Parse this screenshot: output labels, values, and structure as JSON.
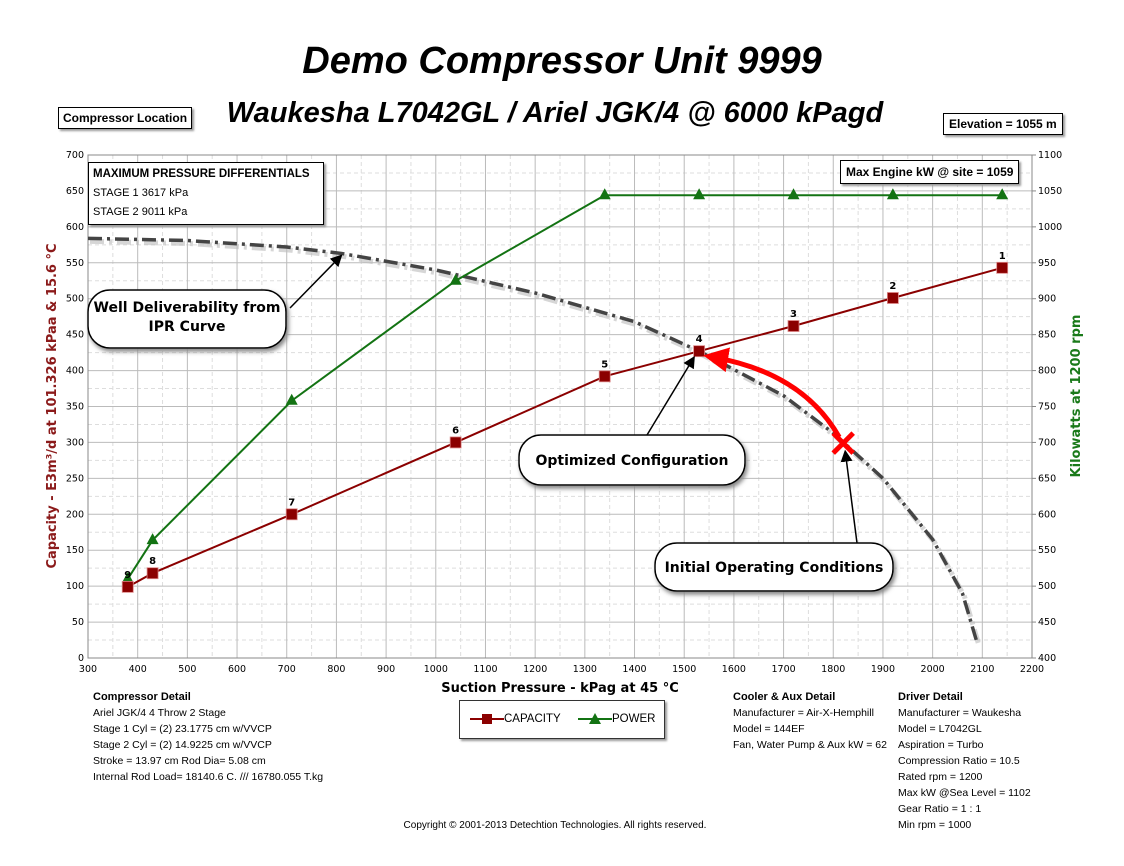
{
  "header": {
    "title": "Demo  Compressor Unit  9999",
    "subtitle": "Waukesha L7042GL / Ariel JGK/4 @ 6000 kPagd",
    "location_label": "Compressor Location",
    "elevation_label": "Elevation = 1055 m"
  },
  "pressure_box": {
    "title": "MAXIMUM PRESSURE DIFFERENTIALS",
    "stage1": "STAGE 1   3617 kPa",
    "stage2": "STAGE 2   9011 kPa"
  },
  "engine_box": "Max Engine kW @ site = 1059",
  "annotations": {
    "ipr": "Well Deliverability from IPR Curve",
    "optimized": "Optimized Configuration",
    "initial": "Initial Operating Conditions"
  },
  "compressor_detail": {
    "heading": "Compressor Detail",
    "lines": [
      "Ariel JGK/4   4 Throw  2 Stage",
      "Stage 1 Cyl = (2) 23.1775 cm w/VVCP",
      "Stage 2 Cyl = (2) 14.9225 cm w/VVCP",
      "Stroke = 13.97 cm Rod Dia= 5.08 cm",
      "Internal Rod Load= 18140.6 C. /// 16780.055 T.kg"
    ]
  },
  "cooler_detail": {
    "heading": "Cooler & Aux Detail",
    "lines": [
      "Manufacturer = Air-X-Hemphill",
      "Model = 144EF",
      "Fan, Water Pump & Aux kW = 62"
    ]
  },
  "driver_detail": {
    "heading": "Driver Detail",
    "lines": [
      "Manufacturer = Waukesha",
      "Model = L7042GL",
      "Aspiration = Turbo",
      "Compression Ratio = 10.5",
      "Rated rpm = 1200",
      "Max kW @Sea Level = 1102",
      "Gear Ratio = 1 : 1",
      "Min rpm = 1000"
    ]
  },
  "copyright": "Copyright © 2001-2013 Detechtion Technologies. All rights reserved.",
  "colors": {
    "capacity": "#8b0000",
    "power": "#137313",
    "ipr": "#444444",
    "highlight": "#ff0000",
    "left_axis": "#8b1a1a",
    "right_axis": "#1a7a1a"
  },
  "chart_data": {
    "type": "line",
    "xlabel": "Suction Pressure - kPag at 45 °C",
    "ylabel": "Capacity - E3m³/d at 101.326 kPaa & 15.6 °C",
    "y2label": "Kilowatts at 1200 rpm",
    "xlim": [
      300,
      2200
    ],
    "ylim": [
      0,
      700
    ],
    "y2lim": [
      400,
      1100
    ],
    "xticks": [
      "300",
      "400",
      "500",
      "600",
      "700",
      "800",
      "900",
      "1000",
      "1100",
      "1200",
      "1300",
      "1400",
      "1500",
      "1600",
      "1700",
      "1800",
      "1900",
      "2000",
      "2100",
      "2200"
    ],
    "yticks": [
      "0",
      "50",
      "100",
      "150",
      "200",
      "250",
      "300",
      "350",
      "400",
      "450",
      "500",
      "550",
      "600",
      "650",
      "700"
    ],
    "y2ticks": [
      "400",
      "450",
      "500",
      "550",
      "600",
      "650",
      "700",
      "750",
      "800",
      "850",
      "900",
      "950",
      "1000",
      "1050",
      "1100"
    ],
    "grid": true,
    "legend": "bottom-center",
    "series": [
      {
        "name": "CAPACITY",
        "axis": "left",
        "marker": "square",
        "points": [
          {
            "label": "1",
            "x": 2140,
            "y": 543
          },
          {
            "label": "2",
            "x": 1920,
            "y": 501
          },
          {
            "label": "3",
            "x": 1720,
            "y": 462
          },
          {
            "label": "4",
            "x": 1530,
            "y": 427
          },
          {
            "label": "5",
            "x": 1340,
            "y": 392
          },
          {
            "label": "6",
            "x": 1040,
            "y": 300
          },
          {
            "label": "7",
            "x": 710,
            "y": 200
          },
          {
            "label": "8",
            "x": 430,
            "y": 118
          },
          {
            "label": "9",
            "x": 380,
            "y": 99
          }
        ]
      },
      {
        "name": "POWER",
        "axis": "right",
        "marker": "triangle",
        "points": [
          {
            "x": 2140,
            "y": 1044
          },
          {
            "x": 1920,
            "y": 1044
          },
          {
            "x": 1720,
            "y": 1044
          },
          {
            "x": 1530,
            "y": 1044
          },
          {
            "x": 1340,
            "y": 1044
          },
          {
            "x": 1040,
            "y": 925
          },
          {
            "x": 710,
            "y": 758
          },
          {
            "x": 430,
            "y": 564
          },
          {
            "x": 380,
            "y": 510
          }
        ]
      }
    ],
    "ipr_curve": {
      "axis": "left",
      "style": "dash-dot",
      "points": [
        [
          300,
          584
        ],
        [
          500,
          581
        ],
        [
          700,
          572
        ],
        [
          810,
          563
        ],
        [
          1000,
          540
        ],
        [
          1200,
          508
        ],
        [
          1400,
          468
        ],
        [
          1530,
          427
        ],
        [
          1700,
          365
        ],
        [
          1800,
          313
        ],
        [
          1900,
          250
        ],
        [
          2000,
          165
        ],
        [
          2060,
          90
        ],
        [
          2090,
          20
        ]
      ]
    },
    "initial_condition": {
      "x": 1820,
      "y": 299
    }
  }
}
